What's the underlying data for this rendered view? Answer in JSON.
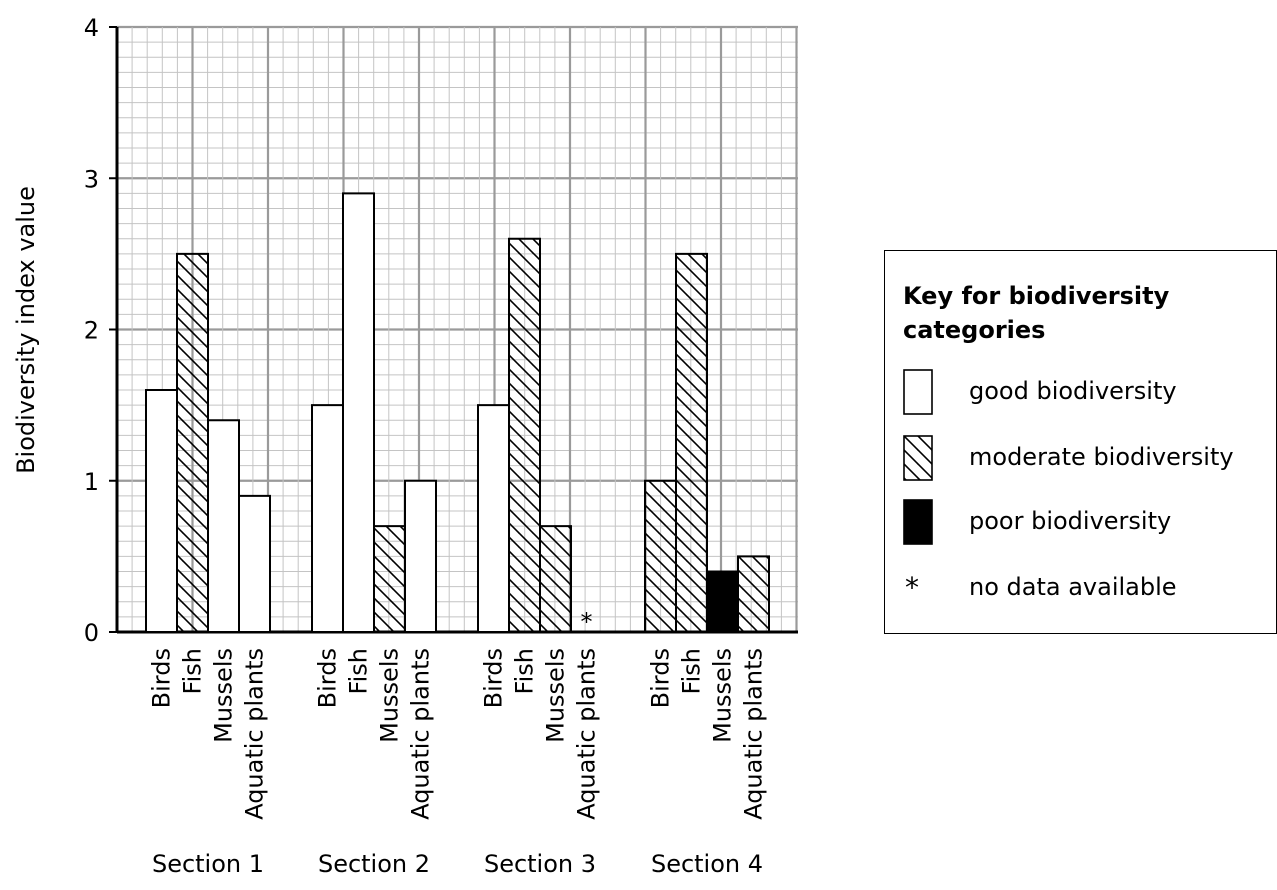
{
  "chart_data": {
    "type": "bar",
    "title": "",
    "xlabel": "",
    "ylabel": "Biodiversity index value",
    "ylim": [
      0,
      4
    ],
    "yticks": [
      0,
      1,
      2,
      3,
      4
    ],
    "grid": true,
    "legend_position": "right",
    "groups": [
      {
        "name": "Section 1",
        "bars": [
          {
            "label": "Birds",
            "value": 1.6,
            "category": "good"
          },
          {
            "label": "Fish",
            "value": 2.5,
            "category": "moderate"
          },
          {
            "label": "Mussels",
            "value": 1.4,
            "category": "good"
          },
          {
            "label": "Aquatic plants",
            "value": 0.9,
            "category": "good"
          }
        ]
      },
      {
        "name": "Section 2",
        "bars": [
          {
            "label": "Birds",
            "value": 1.5,
            "category": "good"
          },
          {
            "label": "Fish",
            "value": 2.9,
            "category": "good"
          },
          {
            "label": "Mussels",
            "value": 0.7,
            "category": "moderate"
          },
          {
            "label": "Aquatic plants",
            "value": 1.0,
            "category": "good"
          }
        ]
      },
      {
        "name": "Section 3",
        "bars": [
          {
            "label": "Birds",
            "value": 1.5,
            "category": "good"
          },
          {
            "label": "Fish",
            "value": 2.6,
            "category": "moderate"
          },
          {
            "label": "Mussels",
            "value": 0.7,
            "category": "moderate"
          },
          {
            "label": "Aquatic plants",
            "value": null,
            "category": "nodata"
          }
        ]
      },
      {
        "name": "Section 4",
        "bars": [
          {
            "label": "Birds",
            "value": 1.0,
            "category": "moderate"
          },
          {
            "label": "Fish",
            "value": 2.5,
            "category": "moderate"
          },
          {
            "label": "Mussels",
            "value": 0.4,
            "category": "poor"
          },
          {
            "label": "Aquatic plants",
            "value": 0.5,
            "category": "moderate"
          }
        ]
      }
    ],
    "legend": {
      "title": "Key for biodiversity categories",
      "entries": [
        {
          "key": "good",
          "label": "good biodiversity"
        },
        {
          "key": "moderate",
          "label": "moderate biodiversity"
        },
        {
          "key": "poor",
          "label": "poor biodiversity"
        },
        {
          "key": "nodata",
          "label": "no data available",
          "symbol": "*"
        }
      ]
    }
  }
}
